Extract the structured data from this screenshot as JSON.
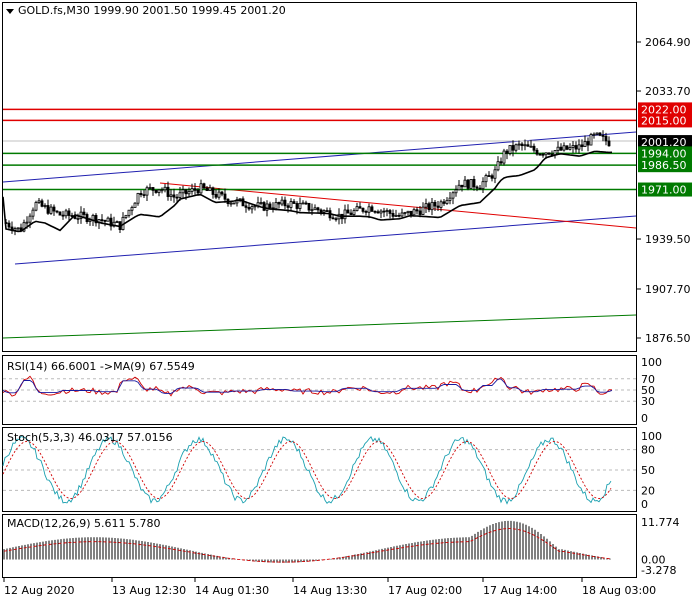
{
  "symbol_header": "GOLD.fs,M30  1999.90 2001.50 1999.45 2001.20",
  "price_axis": [
    "2064.90",
    "2033.70",
    "1939.50",
    "1907.70",
    "1876.50"
  ],
  "levels": [
    {
      "label": "2022.00",
      "color": "#e00000"
    },
    {
      "label": "2015.00",
      "color": "#e00000"
    },
    {
      "label": "2001.20",
      "color": "#000000"
    },
    {
      "label": "1994.00",
      "color": "#007a00"
    },
    {
      "label": "1986.50",
      "color": "#007a00"
    },
    {
      "label": "1971.00",
      "color": "#007a00"
    }
  ],
  "rsi": {
    "title": "RSI(14) 66.6001  ->MA(9) 67.5549",
    "axis": [
      "100",
      "70",
      "50",
      "30",
      "0"
    ],
    "colors": {
      "rsi": "#d00000",
      "ma": "#1a1aa0"
    }
  },
  "stoch": {
    "title": "Stoch(5,3,3) 46.0317 57.0156",
    "axis": [
      "100",
      "80",
      "50",
      "20",
      "0"
    ],
    "colors": {
      "main": "#1aa0b0",
      "signal": "#d00000"
    }
  },
  "macd": {
    "title": "MACD(12,26,9) 5.611 5.780",
    "axis": [
      "11.774",
      "0.00",
      "-3.278"
    ]
  },
  "time_axis": [
    "12 Aug 2020",
    "13 Aug 12:30",
    "14 Aug 01:30",
    "14 Aug 13:30",
    "17 Aug 02:00",
    "17 Aug 14:00",
    "18 Aug 03:00"
  ],
  "colors": {
    "candle": "#000000",
    "ma_line": "#000000",
    "channel": "#2020b0",
    "trend_red": "#e00000",
    "support_green": "#007a00",
    "background": "#ffffff"
  }
}
